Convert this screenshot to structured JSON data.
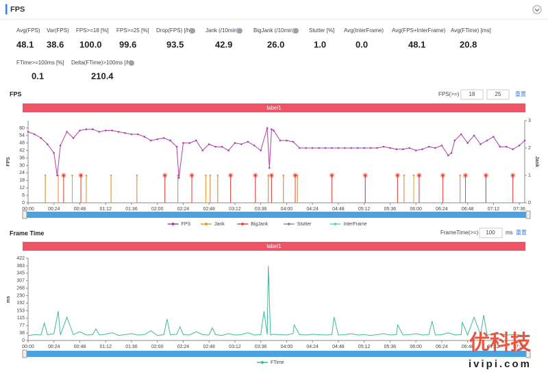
{
  "header": {
    "title": "FPS"
  },
  "metrics": [
    {
      "label": "Avg(FPS)",
      "value": "48.1"
    },
    {
      "label": "Var(FPS)",
      "value": "38.6"
    },
    {
      "label": "FPS>=18 [%]",
      "value": "100.0"
    },
    {
      "label": "FPS>=25 [%]",
      "value": "99.6"
    },
    {
      "label": "Drop(FPS) [/h]",
      "value": "93.5"
    },
    {
      "label": "Jank (/10min)",
      "value": "42.9"
    },
    {
      "label": "BigJank (/10min)",
      "value": "26.0"
    },
    {
      "label": "Stutter [%]",
      "value": "1.0"
    },
    {
      "label": "Avg(InterFrame)",
      "value": "0.0"
    },
    {
      "label": "Avg(FPS+InterFrame)",
      "value": "48.1"
    },
    {
      "label": "Avg(FTime) [ms]",
      "value": "20.8"
    },
    {
      "label": "FTime>=100ms [%]",
      "value": "0.1"
    },
    {
      "label": "Delta(FTime)>100ms [/h]",
      "value": "210.4"
    }
  ],
  "panels": [
    {
      "title": "FPS",
      "threshold_label": "FPS(>=)",
      "thresholds": [
        "18",
        "25"
      ],
      "reset": "重置",
      "band_label": "label1"
    },
    {
      "title": "Frame Time",
      "threshold_label": "FrameTime(>=)",
      "thresholds": [
        "100"
      ],
      "unit": "ms",
      "reset": "重置",
      "band_label": "label1"
    }
  ],
  "watermark": {
    "brand": "优科技",
    "site": "ivipi.com"
  },
  "chart_data": [
    {
      "type": "line",
      "ylabel": "FPS",
      "y2label": "Jank",
      "xlim": [
        0,
        461
      ],
      "ylim": [
        0,
        66
      ],
      "y2lim": [
        0,
        3
      ],
      "yticks": [
        0,
        6,
        12,
        18,
        24,
        30,
        36,
        42,
        48,
        54,
        60
      ],
      "y2ticks": [
        0,
        1,
        2,
        3
      ],
      "xticks": [
        {
          "value": 0,
          "label": "00:00"
        },
        {
          "value": 24,
          "label": "00:24"
        },
        {
          "value": 48,
          "label": "00:48"
        },
        {
          "value": 72,
          "label": "01:12"
        },
        {
          "value": 96,
          "label": "01:36"
        },
        {
          "value": 120,
          "label": "02:00"
        },
        {
          "value": 144,
          "label": "02:24"
        },
        {
          "value": 168,
          "label": "02:48"
        },
        {
          "value": 192,
          "label": "03:12"
        },
        {
          "value": 216,
          "label": "03:36"
        },
        {
          "value": 240,
          "label": "04:00"
        },
        {
          "value": 264,
          "label": "04:24"
        },
        {
          "value": 288,
          "label": "04:48"
        },
        {
          "value": 312,
          "label": "05:12"
        },
        {
          "value": 336,
          "label": "05:36"
        },
        {
          "value": 360,
          "label": "06:00"
        },
        {
          "value": 384,
          "label": "06:24"
        },
        {
          "value": 408,
          "label": "06:48"
        },
        {
          "value": 432,
          "label": "07:12"
        },
        {
          "value": 456,
          "label": "07:36"
        }
      ],
      "series": [
        {
          "name": "FPS",
          "color": "#b03fa5",
          "style": "line",
          "markers": true,
          "x": [
            0,
            6,
            12,
            18,
            24,
            27,
            30,
            36,
            42,
            48,
            54,
            60,
            66,
            72,
            78,
            84,
            90,
            96,
            102,
            108,
            114,
            120,
            126,
            132,
            138,
            140,
            144,
            150,
            156,
            162,
            168,
            174,
            180,
            186,
            192,
            198,
            204,
            210,
            216,
            222,
            224,
            226,
            228,
            234,
            240,
            246,
            252,
            258,
            264,
            270,
            276,
            282,
            288,
            294,
            300,
            306,
            312,
            318,
            324,
            330,
            336,
            342,
            348,
            354,
            360,
            366,
            372,
            378,
            384,
            390,
            393,
            396,
            402,
            408,
            414,
            420,
            426,
            432,
            438,
            444,
            450,
            456,
            461
          ],
          "values": [
            57,
            55,
            52,
            47,
            40,
            22,
            46,
            57,
            52,
            58,
            59,
            59,
            57,
            58,
            58,
            57,
            56,
            55,
            55,
            53,
            50,
            51,
            52,
            50,
            45,
            20,
            48,
            48,
            50,
            42,
            47,
            45,
            45,
            42,
            48,
            47,
            49,
            46,
            42,
            60,
            28,
            59,
            58,
            50,
            50,
            49,
            44,
            44,
            44,
            44,
            44,
            44,
            44,
            44,
            44,
            44,
            44,
            44,
            44,
            45,
            44,
            43,
            43,
            44,
            42,
            43,
            45,
            44,
            46,
            38,
            40,
            50,
            55,
            48,
            54,
            47,
            50,
            53,
            45,
            45,
            43,
            46,
            50
          ]
        },
        {
          "name": "Jank",
          "color": "#f0962e",
          "style": "spike",
          "marker": "dot",
          "axis": "y2",
          "x": [
            16,
            28,
            41,
            54,
            77,
            101,
            139,
            165,
            169,
            176,
            223,
            237,
            250,
            349,
            358,
            401
          ],
          "values": [
            1,
            1,
            1,
            1,
            1,
            1,
            1,
            1,
            1,
            1,
            1,
            1,
            1,
            1,
            1,
            1
          ]
        },
        {
          "name": "BigJank",
          "color": "#e8453c",
          "style": "spike",
          "marker": "halo",
          "axis": "y2",
          "x": [
            33,
            49,
            127,
            152,
            188,
            211,
            226,
            248,
            282,
            313,
            343,
            363,
            385,
            406,
            425,
            450
          ],
          "values": [
            1,
            1,
            1,
            1,
            1,
            1,
            1,
            1,
            1,
            1,
            1,
            1,
            1,
            1,
            1,
            1
          ]
        },
        {
          "name": "Stutter",
          "color": "#7d93b2",
          "style": "spike",
          "axis": "y2",
          "x": [
            16,
            28,
            33,
            41,
            49,
            54,
            77,
            101,
            127,
            139,
            152,
            165,
            169,
            176,
            188,
            211,
            223,
            226,
            237,
            248,
            250,
            282,
            313,
            343,
            349,
            358,
            363,
            385,
            401,
            406,
            425,
            450
          ],
          "values": [
            1,
            1,
            1,
            1,
            1,
            1,
            1,
            1,
            1,
            1,
            1,
            1,
            1,
            1,
            1,
            1,
            1,
            1,
            1,
            1,
            1,
            1,
            1,
            1,
            1,
            1,
            1,
            1,
            1,
            1,
            1,
            1
          ]
        },
        {
          "name": "InterFrame",
          "color": "#5fd3d3",
          "style": "spike",
          "axis": "y2",
          "x": [],
          "values": []
        }
      ]
    },
    {
      "type": "line",
      "ylabel": "ms",
      "xlim": [
        0,
        461
      ],
      "ylim": [
        0,
        422
      ],
      "yticks": [
        0,
        38,
        77,
        115,
        153,
        192,
        230,
        268,
        307,
        345,
        383,
        422
      ],
      "xticks": [
        {
          "value": 0,
          "label": "00:00"
        },
        {
          "value": 24,
          "label": "00:24"
        },
        {
          "value": 48,
          "label": "00:48"
        },
        {
          "value": 72,
          "label": "01:12"
        },
        {
          "value": 96,
          "label": "01:36"
        },
        {
          "value": 120,
          "label": "02:00"
        },
        {
          "value": 144,
          "label": "02:24"
        },
        {
          "value": 168,
          "label": "02:48"
        },
        {
          "value": 192,
          "label": "03:12"
        },
        {
          "value": 216,
          "label": "03:36"
        },
        {
          "value": 240,
          "label": "04:00"
        },
        {
          "value": 264,
          "label": "04:24"
        },
        {
          "value": 288,
          "label": "04:48"
        },
        {
          "value": 312,
          "label": "05:12"
        },
        {
          "value": 336,
          "label": "05:36"
        },
        {
          "value": 360,
          "label": "06:00"
        },
        {
          "value": 384,
          "label": "06:24"
        },
        {
          "value": 408,
          "label": "06:48"
        },
        {
          "value": 432,
          "label": "07:12"
        },
        {
          "value": 456,
          "label": "07:36"
        }
      ],
      "series": [
        {
          "name": "FTime",
          "color": "#3cb89a",
          "style": "line",
          "x": [
            0,
            6,
            12,
            15,
            18,
            24,
            28,
            30,
            36,
            42,
            48,
            54,
            60,
            63,
            66,
            72,
            78,
            84,
            90,
            96,
            102,
            108,
            114,
            120,
            126,
            129,
            132,
            138,
            141,
            144,
            150,
            156,
            162,
            168,
            171,
            174,
            180,
            186,
            192,
            198,
            204,
            210,
            216,
            219,
            222,
            223,
            225,
            228,
            234,
            240,
            246,
            247,
            252,
            258,
            264,
            270,
            276,
            282,
            284,
            288,
            294,
            300,
            306,
            312,
            318,
            324,
            330,
            336,
            342,
            343,
            348,
            354,
            360,
            366,
            372,
            375,
            378,
            384,
            390,
            396,
            402,
            403,
            408,
            414,
            420,
            423,
            426,
            432,
            438,
            444,
            450,
            456,
            461
          ],
          "values": [
            25,
            30,
            28,
            90,
            30,
            35,
            150,
            28,
            120,
            30,
            45,
            28,
            30,
            60,
            28,
            32,
            40,
            26,
            30,
            35,
            28,
            30,
            50,
            26,
            30,
            110,
            28,
            32,
            70,
            30,
            28,
            45,
            30,
            28,
            65,
            30,
            26,
            35,
            28,
            30,
            40,
            28,
            30,
            150,
            30,
            383,
            28,
            32,
            30,
            28,
            35,
            80,
            30,
            28,
            32,
            30,
            28,
            30,
            120,
            28,
            30,
            35,
            28,
            30,
            26,
            30,
            35,
            28,
            30,
            80,
            28,
            30,
            35,
            28,
            30,
            100,
            28,
            30,
            40,
            28,
            30,
            95,
            28,
            120,
            30,
            130,
            28,
            30,
            35,
            28,
            30,
            28,
            25
          ]
        }
      ]
    }
  ]
}
